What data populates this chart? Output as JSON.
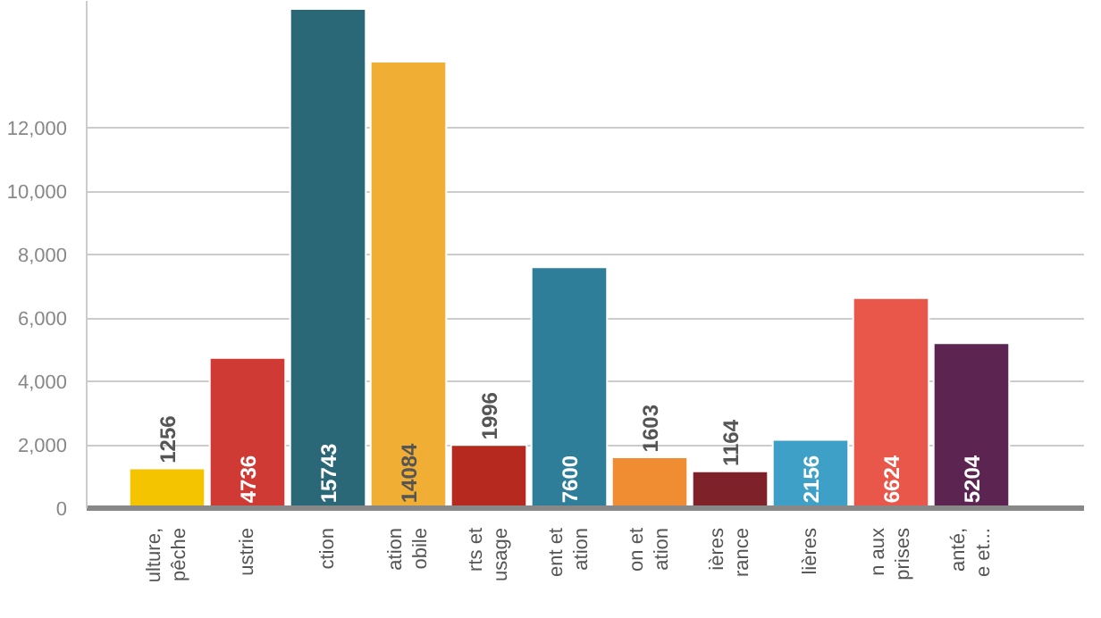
{
  "chart_data": {
    "type": "bar",
    "categories": [
      "ulture,\npêche",
      "ustrie",
      "ction",
      "ation\nobile",
      "rts et\nusage",
      "ent et\nation",
      "on et\nation",
      "ières\nrance",
      "lières",
      "n aux\nprises",
      "anté,\ne et..."
    ],
    "values": [
      1256,
      4736,
      15743,
      14084,
      1996,
      7600,
      1603,
      1164,
      2156,
      6624,
      5204
    ],
    "colors": [
      "#f5c400",
      "#d03a35",
      "#2a6877",
      "#f0ae35",
      "#b5291f",
      "#2e7d99",
      "#f08c32",
      "#7f2128",
      "#3ea0c6",
      "#e8574a",
      "#5c2450"
    ],
    "ylim": [
      0,
      16000
    ],
    "yticks": [
      0,
      {
        "value": 2000,
        "label": "2,000"
      },
      {
        "value": 4000,
        "label": "4,000"
      },
      {
        "value": 6000,
        "label": "6,000"
      },
      {
        "value": 8000,
        "label": "8,000"
      },
      {
        "value": 10000,
        "label": "10,000"
      },
      {
        "value": 12000,
        "label": "12,000"
      }
    ],
    "grid": "y",
    "data_labels": true
  }
}
